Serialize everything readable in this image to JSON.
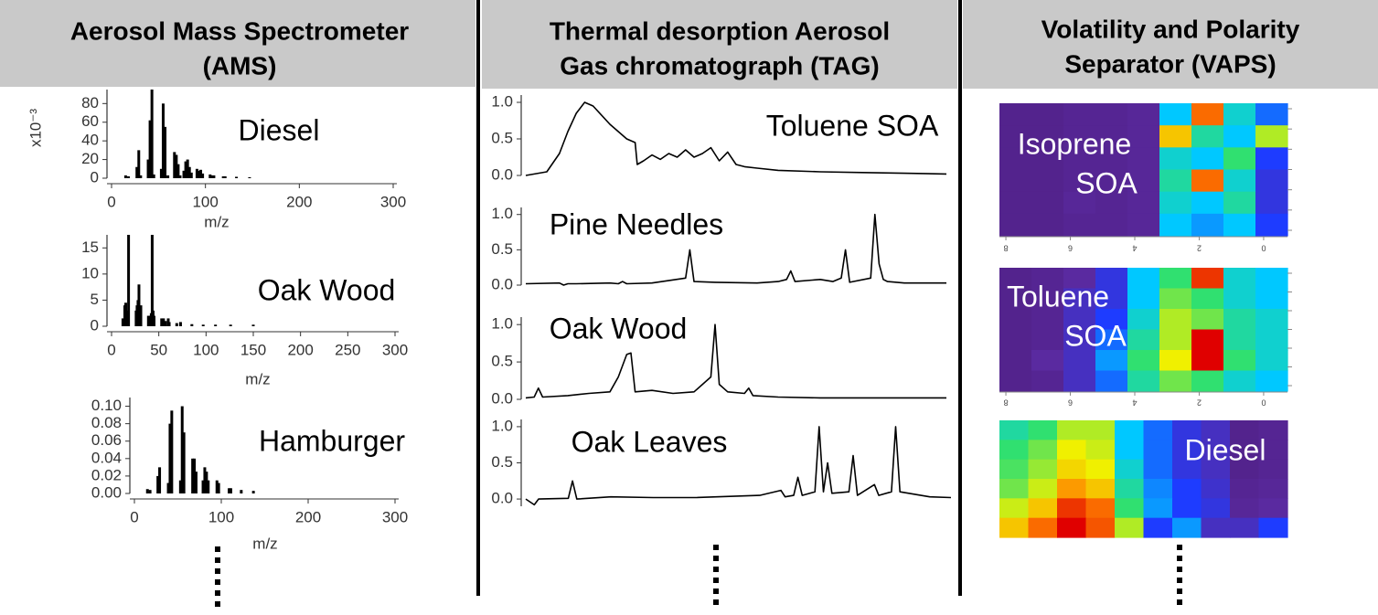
{
  "panels": [
    {
      "title_lines": [
        "Aerosol Mass Spectrometer",
        "(AMS)"
      ]
    },
    {
      "title_lines": [
        "Thermal desorption Aerosol",
        "Gas chromatograph (TAG)"
      ]
    },
    {
      "title_lines": [
        "Volatility and Polarity",
        "Separator (VAPS)"
      ]
    }
  ],
  "chart_data": [
    {
      "type": "bar",
      "label": "Diesel",
      "ylabel": "x10⁻³",
      "xlabel": "m/z",
      "color": "#000000",
      "x": [
        15,
        18,
        27,
        29,
        31,
        39,
        41,
        43,
        45,
        53,
        55,
        57,
        60,
        67,
        69,
        71,
        73,
        77,
        79,
        81,
        83,
        85,
        91,
        93,
        95,
        97,
        105,
        107,
        109,
        119,
        121,
        133,
        147
      ],
      "values": [
        3,
        2,
        12,
        30,
        3,
        20,
        62,
        95,
        4,
        10,
        80,
        55,
        3,
        28,
        25,
        15,
        3,
        8,
        18,
        20,
        12,
        6,
        10,
        8,
        9,
        5,
        4,
        3,
        3,
        2,
        2,
        1.5,
        1
      ],
      "xlim": [
        0,
        300
      ],
      "ylim": [
        0,
        95
      ],
      "xticks": [
        0,
        100,
        200,
        300
      ],
      "yticks": [
        0,
        20,
        40,
        60,
        80
      ]
    },
    {
      "type": "bar",
      "label": "Oak Wood",
      "xlabel": "m/z",
      "color": "#000000",
      "x": [
        12,
        14,
        15,
        16,
        18,
        26,
        27,
        28,
        29,
        30,
        31,
        39,
        41,
        42,
        43,
        44,
        45,
        53,
        55,
        57,
        60,
        61,
        69,
        73,
        85,
        97,
        110,
        126,
        150
      ],
      "values": [
        1.5,
        4,
        4.5,
        3,
        17.5,
        3,
        4,
        5,
        8,
        2,
        4,
        2,
        2,
        2.5,
        17.5,
        3,
        2,
        1.5,
        1.5,
        1,
        1.5,
        0.8,
        0.6,
        0.8,
        0.4,
        0.3,
        0.3,
        0.3,
        0.3
      ],
      "xlim": [
        0,
        300
      ],
      "ylim": [
        0,
        17.5
      ],
      "xticks": [
        0,
        50,
        100,
        150,
        200,
        250,
        300
      ],
      "yticks": [
        0,
        5,
        10,
        15
      ]
    },
    {
      "type": "bar",
      "label": "Hamburger",
      "xlabel": "m/z",
      "color": "#000000",
      "x": [
        15,
        18,
        27,
        29,
        39,
        41,
        43,
        53,
        55,
        57,
        67,
        69,
        71,
        79,
        81,
        83,
        85,
        95,
        97,
        109,
        111,
        123,
        137
      ],
      "values": [
        0.005,
        0.004,
        0.02,
        0.03,
        0.012,
        0.08,
        0.095,
        0.015,
        0.1,
        0.07,
        0.04,
        0.04,
        0.025,
        0.015,
        0.03,
        0.025,
        0.015,
        0.015,
        0.012,
        0.006,
        0.006,
        0.004,
        0.003
      ],
      "xlim": [
        0,
        300
      ],
      "ylim": [
        0,
        0.11
      ],
      "xticks": [
        0,
        100,
        200,
        300
      ],
      "yticks": [
        {
          "value": 0,
          "label": "0.00"
        },
        {
          "value": 0.02,
          "label": "0.02"
        },
        {
          "value": 0.04,
          "label": "0.04"
        },
        {
          "value": 0.06,
          "label": "0.06"
        },
        {
          "value": 0.08,
          "label": "0.08"
        },
        {
          "value": 0.1,
          "label": "0.10"
        }
      ]
    },
    {
      "type": "line",
      "label": "Toluene SOA",
      "color": "#000000",
      "x": [
        0,
        5,
        8,
        10,
        12,
        14,
        16,
        20,
        24,
        26,
        26.5,
        28,
        30,
        32,
        34,
        36,
        38,
        40,
        42,
        44,
        46,
        48,
        50,
        52,
        55,
        60,
        70,
        80,
        90,
        100
      ],
      "values": [
        0,
        0.05,
        0.3,
        0.6,
        0.85,
        1.0,
        0.95,
        0.7,
        0.5,
        0.45,
        0.15,
        0.2,
        0.28,
        0.22,
        0.3,
        0.25,
        0.35,
        0.25,
        0.3,
        0.38,
        0.2,
        0.32,
        0.15,
        0.12,
        0.1,
        0.07,
        0.05,
        0.04,
        0.03,
        0.02
      ],
      "xlim": [
        0,
        100
      ],
      "ylim": [
        0,
        1.1
      ],
      "yticks": [
        {
          "value": 0,
          "label": "0.0"
        },
        {
          "value": 0.5,
          "label": "0.5"
        },
        {
          "value": 1,
          "label": "1.0"
        }
      ]
    },
    {
      "type": "line",
      "label": "Pine Needles",
      "color": "#000000",
      "x": [
        0,
        8,
        9,
        10,
        12,
        20,
        22,
        23,
        24,
        30,
        38,
        39,
        40,
        45,
        55,
        60,
        62,
        63,
        64,
        70,
        73,
        75,
        76,
        77,
        82,
        83,
        84,
        85,
        86,
        90,
        100
      ],
      "values": [
        0.02,
        0.03,
        0.0,
        0.02,
        0.02,
        0.03,
        0.02,
        0.05,
        0.02,
        0.03,
        0.1,
        0.5,
        0.05,
        0.04,
        0.03,
        0.05,
        0.08,
        0.2,
        0.05,
        0.08,
        0.05,
        0.1,
        0.5,
        0.04,
        0.1,
        1.0,
        0.3,
        0.08,
        0.05,
        0.03,
        0.03
      ],
      "xlim": [
        0,
        100
      ],
      "ylim": [
        0,
        1.1
      ],
      "yticks": [
        {
          "value": 0,
          "label": "0.0"
        },
        {
          "value": 0.5,
          "label": "0.5"
        },
        {
          "value": 1,
          "label": "1.0"
        }
      ]
    },
    {
      "type": "line",
      "label": "Oak Wood",
      "color": "#000000",
      "x": [
        0,
        2,
        3,
        4,
        10,
        15,
        20,
        22,
        24,
        25,
        26,
        30,
        35,
        40,
        44,
        45,
        46,
        48,
        52,
        53,
        54,
        60,
        70,
        80,
        100
      ],
      "values": [
        0.02,
        0.03,
        0.15,
        0.03,
        0.05,
        0.08,
        0.1,
        0.3,
        0.6,
        0.62,
        0.1,
        0.12,
        0.08,
        0.1,
        0.3,
        1.0,
        0.2,
        0.1,
        0.08,
        0.15,
        0.05,
        0.03,
        0.02,
        0.02,
        0.02
      ],
      "xlim": [
        0,
        100
      ],
      "ylim": [
        0,
        1.1
      ],
      "yticks": [
        {
          "value": 0,
          "label": "0.0"
        },
        {
          "value": 0.5,
          "label": "0.5"
        },
        {
          "value": 1,
          "label": "1.0"
        }
      ]
    },
    {
      "type": "line",
      "label": "Oak Leaves",
      "color": "#000000",
      "x": [
        0,
        2,
        3,
        10,
        11,
        12,
        20,
        30,
        40,
        55,
        60,
        61,
        63,
        64,
        65,
        68,
        69,
        70,
        71,
        72,
        76,
        77,
        78,
        82,
        83,
        86,
        87,
        88,
        95,
        100
      ],
      "values": [
        0.0,
        -0.08,
        0.0,
        0.01,
        0.25,
        0.0,
        0.03,
        0.02,
        0.02,
        0.05,
        0.12,
        0.03,
        0.05,
        0.3,
        0.05,
        0.1,
        1.0,
        0.1,
        0.5,
        0.08,
        0.1,
        0.6,
        0.05,
        0.2,
        0.05,
        0.1,
        1.0,
        0.1,
        0.03,
        0.02
      ],
      "xlim": [
        0,
        100
      ],
      "ylim": [
        -0.1,
        1.1
      ],
      "yticks": [
        {
          "value": 0,
          "label": "0.0"
        },
        {
          "value": 0.5,
          "label": "0.5"
        },
        {
          "value": 1,
          "label": "1.0"
        }
      ]
    },
    {
      "type": "heatmap",
      "label_lines": [
        "Isoprene",
        "SOA"
      ],
      "colormap": "jet",
      "xlim": [
        8.2,
        -0.74
      ],
      "xticks": [
        8,
        6,
        4,
        2,
        0
      ],
      "values": [
        [
          0.08,
          0.08,
          0.1,
          0.1,
          0.12,
          0.45,
          0.9,
          0.5,
          0.35
        ],
        [
          0.08,
          0.08,
          0.1,
          0.1,
          0.12,
          0.8,
          0.55,
          0.45,
          0.7
        ],
        [
          0.08,
          0.08,
          0.1,
          0.1,
          0.12,
          0.5,
          0.45,
          0.6,
          0.3
        ],
        [
          0.08,
          0.08,
          0.1,
          0.1,
          0.12,
          0.55,
          0.9,
          0.5,
          0.25
        ],
        [
          0.08,
          0.08,
          0.12,
          0.1,
          0.12,
          0.5,
          0.45,
          0.55,
          0.25
        ],
        [
          0.08,
          0.08,
          0.1,
          0.1,
          0.12,
          0.45,
          0.4,
          0.45,
          0.3
        ]
      ]
    },
    {
      "type": "heatmap",
      "label_lines": [
        "Toluene",
        "SOA"
      ],
      "colormap": "jet",
      "xlim": [
        8.2,
        -0.74
      ],
      "xticks": [
        8,
        6,
        4,
        2,
        0
      ],
      "values": [
        [
          0.08,
          0.1,
          0.15,
          0.25,
          0.45,
          0.6,
          0.95,
          0.5,
          0.45
        ],
        [
          0.08,
          0.1,
          0.2,
          0.25,
          0.45,
          0.65,
          0.6,
          0.5,
          0.45
        ],
        [
          0.08,
          0.1,
          0.2,
          0.3,
          0.5,
          0.7,
          0.65,
          0.55,
          0.5
        ],
        [
          0.08,
          0.1,
          0.2,
          0.35,
          0.55,
          0.7,
          1.0,
          0.55,
          0.5
        ],
        [
          0.08,
          0.15,
          0.2,
          0.4,
          0.6,
          0.75,
          1.0,
          0.6,
          0.5
        ],
        [
          0.08,
          0.1,
          0.2,
          0.35,
          0.55,
          0.65,
          0.6,
          0.5,
          0.45
        ]
      ]
    },
    {
      "type": "heatmap",
      "label_lines": [
        "Diesel"
      ],
      "colormap": "jet",
      "values": [
        [
          0.55,
          0.6,
          0.7,
          0.7,
          0.45,
          0.35,
          0.25,
          0.2,
          0.08,
          0.1
        ],
        [
          0.6,
          0.65,
          0.75,
          0.72,
          0.45,
          0.35,
          0.25,
          0.2,
          0.08,
          0.1
        ],
        [
          0.62,
          0.68,
          0.78,
          0.75,
          0.5,
          0.35,
          0.25,
          0.2,
          0.08,
          0.1
        ],
        [
          0.65,
          0.72,
          0.85,
          0.8,
          0.55,
          0.38,
          0.3,
          0.22,
          0.1,
          0.12
        ],
        [
          0.72,
          0.8,
          0.95,
          0.9,
          0.6,
          0.4,
          0.3,
          0.25,
          0.12,
          0.15
        ],
        [
          0.8,
          0.9,
          1.0,
          0.92,
          0.7,
          0.3,
          0.4,
          0.2,
          0.2,
          0.3
        ]
      ]
    }
  ]
}
